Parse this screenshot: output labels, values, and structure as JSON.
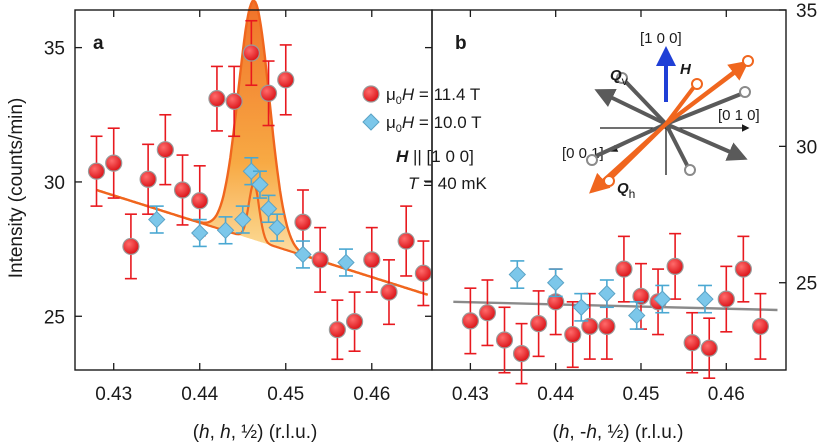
{
  "chart_data": [
    {
      "panel": "a",
      "type": "scatter",
      "xlabel": "(h, h, ½) (r.l.u.)",
      "ylabel": "Intensity (counts/min)",
      "xlim": [
        0.4255,
        0.467
      ],
      "ylim": [
        23.0,
        36.4
      ],
      "xticks": [
        0.43,
        0.44,
        0.45,
        0.46
      ],
      "xtick_labels": [
        "0.43",
        "0.44",
        "0.45",
        "0.46"
      ],
      "yticks": [
        25,
        30,
        35
      ],
      "ytick_labels": [
        "25",
        "30",
        "35"
      ],
      "series": [
        {
          "name": "μ0H = 11.4 T",
          "color": "#e8191f",
          "marker": "circle",
          "x": [
            0.428,
            0.43,
            0.432,
            0.434,
            0.436,
            0.438,
            0.44,
            0.442,
            0.444,
            0.446,
            0.448,
            0.45,
            0.452,
            0.454,
            0.456,
            0.458,
            0.46,
            0.462,
            0.464,
            0.466
          ],
          "y": [
            30.4,
            30.7,
            27.6,
            30.1,
            31.2,
            29.7,
            29.3,
            33.1,
            33.0,
            34.8,
            33.3,
            33.8,
            28.5,
            27.1,
            24.5,
            24.8,
            27.1,
            25.9,
            27.8,
            26.6
          ],
          "err": [
            1.3,
            1.3,
            1.2,
            1.3,
            1.3,
            1.3,
            1.3,
            1.2,
            1.3,
            1.2,
            1.2,
            1.3,
            1.2,
            1.2,
            1.1,
            1.1,
            1.2,
            1.2,
            1.3,
            1.2
          ]
        },
        {
          "name": "μ0H = 10.0 T",
          "color": "#7cc7ea",
          "marker": "diamond",
          "x": [
            0.435,
            0.44,
            0.443,
            0.445,
            0.446,
            0.447,
            0.448,
            0.449,
            0.452,
            0.457
          ],
          "y": [
            28.6,
            28.1,
            28.2,
            28.6,
            30.4,
            29.9,
            29.0,
            28.3,
            27.3,
            27.0
          ],
          "err": [
            0.5,
            0.5,
            0.5,
            0.5,
            0.5,
            0.5,
            0.5,
            0.5,
            0.5,
            0.5
          ]
        }
      ],
      "fit_lines": [
        {
          "name": "11.4 T fit",
          "color": "#f0661e",
          "background_start": 29.7,
          "background_end": 25.8,
          "peak_center": 0.4463,
          "peak_height": 8.9,
          "peak_width": 0.0018
        },
        {
          "name": "10.0 T fit",
          "color": "#f0661e",
          "background_start": 29.7,
          "background_end": 25.8,
          "peak_center": 0.4463,
          "peak_height": 2.1,
          "peak_width": 0.0006
        }
      ]
    },
    {
      "panel": "b",
      "type": "scatter",
      "xlabel": "(h, -h, ½) (r.l.u.)",
      "xlim": [
        0.4255,
        0.467
      ],
      "ylim": [
        21.8,
        35.0
      ],
      "xticks": [
        0.43,
        0.44,
        0.45,
        0.46
      ],
      "xtick_labels": [
        "0.43",
        "0.44",
        "0.45",
        "0.46"
      ],
      "yticks": [
        25,
        30,
        35
      ],
      "ytick_labels": [
        "25",
        "30",
        "35"
      ],
      "series": [
        {
          "name": "μ0H = 11.4 T",
          "color": "#e8191f",
          "marker": "circle",
          "x": [
            0.43,
            0.432,
            0.434,
            0.436,
            0.438,
            0.44,
            0.442,
            0.444,
            0.446,
            0.448,
            0.45,
            0.452,
            0.454,
            0.456,
            0.458,
            0.46,
            0.462,
            0.464
          ],
          "y": [
            23.6,
            23.9,
            22.9,
            22.4,
            23.5,
            24.3,
            23.1,
            23.4,
            23.4,
            25.5,
            24.5,
            24.3,
            25.6,
            22.8,
            22.6,
            24.4,
            25.5,
            23.4
          ],
          "err": [
            1.2,
            1.2,
            1.2,
            1.1,
            1.2,
            1.2,
            1.2,
            1.2,
            1.2,
            1.2,
            1.2,
            1.2,
            1.2,
            1.1,
            1.1,
            1.2,
            1.2,
            1.2
          ]
        },
        {
          "name": "μ0H = 10.0 T",
          "color": "#7cc7ea",
          "marker": "diamond",
          "x": [
            0.4355,
            0.44,
            0.443,
            0.446,
            0.4495,
            0.4525,
            0.4575
          ],
          "y": [
            25.3,
            25.0,
            24.1,
            24.6,
            23.8,
            24.4,
            24.4
          ],
          "err": [
            0.5,
            0.5,
            0.5,
            0.5,
            0.5,
            0.5,
            0.5
          ]
        }
      ],
      "fit_lines": [
        {
          "name": "background",
          "color": "#8a8a8a",
          "x": [
            0.428,
            0.466
          ],
          "y": [
            24.3,
            24.0
          ]
        }
      ]
    }
  ],
  "panel_labels": {
    "a": "a",
    "b": "b"
  },
  "legend": {
    "line1_mu": "μ",
    "line1_sub": "0",
    "line1_h": "H",
    "line1_rest": " = 11.4 T",
    "line2_mu": "μ",
    "line2_sub": "0",
    "line2_h": "H",
    "line2_rest": " = 10.0 T",
    "line3_h": "H",
    "line3_rest": " || [1 0 0]",
    "line4_t": "T",
    "line4_rest": " = 40 mK",
    "colors": {
      "field_11_4": "#e8191f",
      "field_10_0": "#7cc7ea"
    }
  },
  "axes_text": {
    "a_xlabel_open": "(",
    "a_xlabel_h1": "h",
    "a_xlabel_mid": ", ",
    "a_xlabel_h2": "h",
    "a_xlabel_close": ", ½) (r.l.u.)",
    "b_xlabel_open": "(",
    "b_xlabel_h1": "h",
    "b_xlabel_mid": ", -",
    "b_xlabel_h2": "h",
    "b_xlabel_close": ", ½) (r.l.u.)",
    "ylabel": "Intensity (counts/min)"
  },
  "vector_diagram": {
    "label_100": "[1 0 0]",
    "label_010": "[0 1 0]",
    "label_001": "[0 0 1]",
    "qv_q": "Q",
    "qv_sub": "v",
    "qh_q": "Q",
    "qh_sub": "h",
    "h_label": "H",
    "colors": {
      "qv": "#5a5a5a",
      "qh": "#f0661e",
      "h": "#1f3fd6"
    }
  }
}
